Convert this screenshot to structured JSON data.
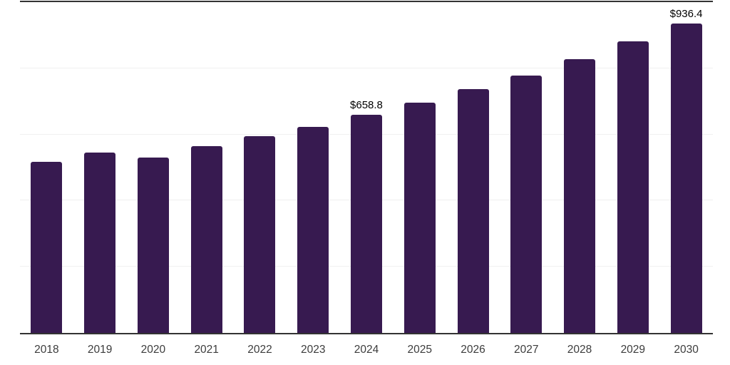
{
  "chart_data": {
    "type": "bar",
    "title": "",
    "xlabel": "",
    "ylabel": "",
    "categories": [
      "2018",
      "2019",
      "2020",
      "2021",
      "2022",
      "2023",
      "2024",
      "2025",
      "2026",
      "2027",
      "2028",
      "2029",
      "2030"
    ],
    "values": [
      516.4,
      546.3,
      531.0,
      565.5,
      593.9,
      622.1,
      658.8,
      696.0,
      736.5,
      778.6,
      828.4,
      881.1,
      936.4
    ],
    "data_labels": {
      "2024": "$658.8",
      "2030": "$936.4"
    },
    "ylim": [
      0,
      1000
    ],
    "gridlines": [
      200,
      400,
      600,
      800
    ],
    "grid": "horizontal-light",
    "legend": "none",
    "colors": {
      "bar": "#371A50",
      "axis": "#333333",
      "gridline": "#F0F0F0",
      "tick_label": "#3C3C3C",
      "data_label": "#000000"
    }
  }
}
